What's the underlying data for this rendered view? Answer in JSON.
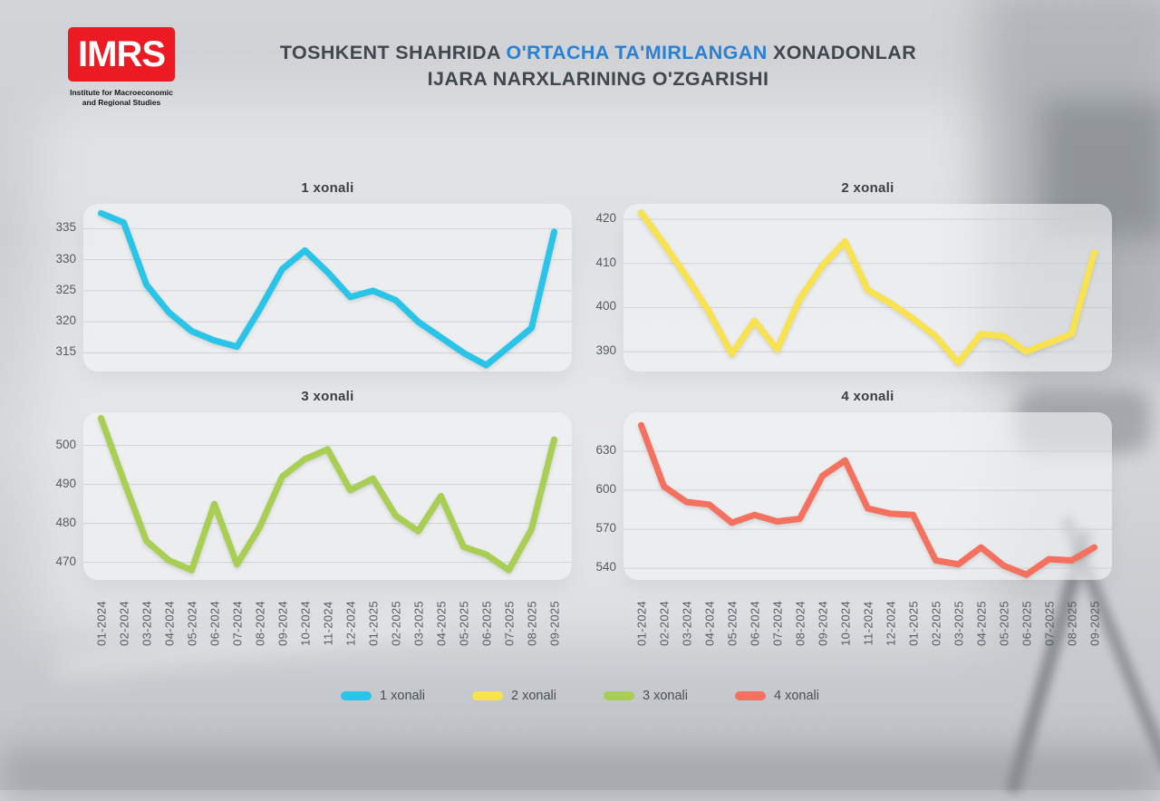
{
  "header": {
    "logo": {
      "text": "IMRS",
      "subtitle_line1": "Institute for Macroeconomic",
      "subtitle_line2": "and Regional Studies"
    },
    "title": {
      "prefix": "TOSHKENT SHAHRIDA ",
      "highlight": "O'RTACHA TA'MIRLANGAN",
      "suffix": " XONADONLAR",
      "line2": "IJARA NARXLARINING O'ZGARISHI"
    }
  },
  "colors": {
    "logo_red": "#EC1B23",
    "accent_blue": "#2A80D4",
    "title_text": "#40474F",
    "axis_text": "#555B63",
    "series_1": "#29C4E8",
    "series_2": "#F9E24F",
    "series_3": "#A8CE54",
    "series_4": "#F4715F"
  },
  "chart_data": [
    {
      "type": "line",
      "title": "1 xonali",
      "color": "#29C4E8",
      "ylim": [
        312,
        339
      ],
      "yticks": [
        335,
        330,
        325,
        320,
        315
      ],
      "grid": true,
      "legend_position": "bottom",
      "categories": [
        "01-2024",
        "02-2024",
        "03-2024",
        "04-2024",
        "05-2024",
        "06-2024",
        "07-2024",
        "08-2024",
        "09-2024",
        "10-2024",
        "11-2024",
        "12-2024",
        "01-2025",
        "02-2025",
        "03-2025",
        "04-2025",
        "05-2025",
        "06-2025",
        "07-2025",
        "08-2025",
        "09-2025"
      ],
      "values": [
        337.5,
        336,
        326,
        321.5,
        318.5,
        317,
        316,
        322,
        328.5,
        331.5,
        328,
        324,
        325,
        323.5,
        320,
        317.5,
        315,
        313,
        316,
        319,
        334.5
      ]
    },
    {
      "type": "line",
      "title": "2 xonali",
      "color": "#F9E24F",
      "ylim": [
        385.5,
        423.5
      ],
      "yticks": [
        420,
        410,
        400,
        390
      ],
      "grid": true,
      "legend_position": "bottom",
      "categories": [
        "01-2024",
        "02-2024",
        "03-2024",
        "04-2024",
        "05-2024",
        "06-2024",
        "07-2024",
        "08-2024",
        "09-2024",
        "10-2024",
        "11-2024",
        "12-2024",
        "01-2025",
        "02-2025",
        "03-2025",
        "04-2025",
        "05-2025",
        "06-2025",
        "07-2025",
        "08-2025",
        "09-2025"
      ],
      "values": [
        421.5,
        414.5,
        407,
        399,
        389.5,
        397,
        390.5,
        402,
        409.5,
        415,
        404,
        401,
        397.5,
        393.5,
        387.5,
        394,
        393.5,
        390,
        392,
        394,
        412.5
      ]
    },
    {
      "type": "line",
      "title": "3 xonali",
      "color": "#A8CE54",
      "ylim": [
        465.5,
        508.5
      ],
      "yticks": [
        500,
        490,
        480,
        470
      ],
      "grid": true,
      "legend_position": "bottom",
      "categories": [
        "01-2024",
        "02-2024",
        "03-2024",
        "04-2024",
        "05-2024",
        "06-2024",
        "07-2024",
        "08-2024",
        "09-2024",
        "10-2024",
        "11-2024",
        "12-2024",
        "01-2025",
        "02-2025",
        "03-2025",
        "04-2025",
        "05-2025",
        "06-2025",
        "07-2025",
        "08-2025",
        "09-2025"
      ],
      "values": [
        507,
        491,
        475.5,
        470.5,
        468,
        485,
        469.5,
        479,
        492,
        496.5,
        499,
        488.5,
        491.5,
        482,
        478,
        487,
        474,
        472,
        468,
        478.5,
        501.5
      ]
    },
    {
      "type": "line",
      "title": "4 xonali",
      "color": "#F4715F",
      "ylim": [
        531,
        660
      ],
      "yticks": [
        630,
        600,
        570,
        540
      ],
      "grid": true,
      "legend_position": "bottom",
      "categories": [
        "01-2024",
        "02-2024",
        "03-2024",
        "04-2024",
        "05-2024",
        "06-2024",
        "07-2024",
        "08-2024",
        "09-2024",
        "10-2024",
        "11-2024",
        "12-2024",
        "01-2025",
        "02-2025",
        "03-2025",
        "04-2025",
        "05-2025",
        "06-2025",
        "07-2025",
        "08-2025",
        "09-2025"
      ],
      "values": [
        650,
        603,
        591,
        589,
        575,
        581,
        576,
        578,
        611,
        623,
        586,
        582,
        581,
        546,
        543,
        556,
        542,
        535,
        547,
        546,
        556
      ]
    }
  ],
  "legend": {
    "items": [
      {
        "label": "1 xonali",
        "color": "#29C4E8"
      },
      {
        "label": "2 xonali",
        "color": "#F9E24F"
      },
      {
        "label": "3 xonali",
        "color": "#A8CE54"
      },
      {
        "label": "4 xonali",
        "color": "#F4715F"
      }
    ]
  }
}
